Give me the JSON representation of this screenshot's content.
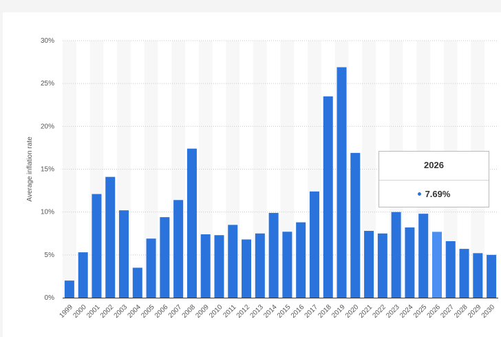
{
  "chart_data": {
    "type": "bar",
    "ylabel": "Average inflation rate",
    "xlabel": "",
    "ylim": [
      0,
      30
    ],
    "yticks": [
      "0%",
      "5%",
      "10%",
      "15%",
      "20%",
      "25%",
      "30%"
    ],
    "yticks_values": [
      0,
      5,
      10,
      15,
      20,
      25,
      30
    ],
    "grid": true,
    "categories": [
      "1999",
      "2000",
      "2001",
      "2002",
      "2003",
      "2004",
      "2005",
      "2006",
      "2007",
      "2008",
      "2009",
      "2010",
      "2011",
      "2012",
      "2013",
      "2014",
      "2015",
      "2016",
      "2017",
      "2018",
      "2019",
      "2020",
      "2021",
      "2022",
      "2023",
      "2024",
      "2025",
      "2026",
      "2027",
      "2028",
      "2029",
      "2030"
    ],
    "values": [
      2.0,
      5.3,
      12.1,
      14.1,
      10.2,
      3.5,
      6.9,
      9.4,
      11.4,
      17.4,
      7.4,
      7.3,
      8.5,
      6.8,
      7.5,
      9.9,
      7.7,
      8.8,
      12.4,
      23.5,
      26.9,
      16.9,
      7.8,
      7.5,
      10.0,
      8.2,
      9.8,
      7.69,
      6.6,
      5.7,
      5.2,
      5.0
    ],
    "bar_color": "#2a72dc",
    "highlight_color": "#4b8ff2",
    "highlight_index": 27
  },
  "tooltip": {
    "year": "2026",
    "value": "7.69%"
  }
}
